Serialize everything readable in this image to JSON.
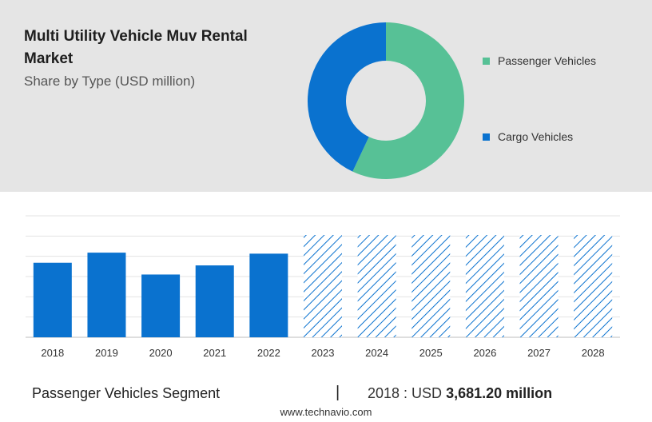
{
  "header": {
    "title": "Multi Utility Vehicle Muv Rental Market",
    "subtitle": "Share by Type (USD million)"
  },
  "chart_data": [
    {
      "type": "pie",
      "donut": true,
      "categories": [
        "Passenger Vehicles",
        "Cargo Vehicles"
      ],
      "values": [
        57,
        43
      ],
      "colors": [
        "#57c196",
        "#0a72cf"
      ],
      "legend_position": "right"
    },
    {
      "type": "bar",
      "categories": [
        "2018",
        "2019",
        "2020",
        "2021",
        "2022",
        "2023",
        "2024",
        "2025",
        "2026",
        "2027",
        "2028"
      ],
      "values": [
        3681.2,
        4180,
        3100,
        3550,
        4130,
        null,
        null,
        null,
        null,
        null,
        null
      ],
      "forecast_categories": [
        "2023",
        "2024",
        "2025",
        "2026",
        "2027",
        "2028"
      ],
      "ylim": [
        0,
        6000
      ],
      "grid": true,
      "bar_color": "#0a72cf",
      "forecast_pattern": "hatched"
    }
  ],
  "footer": {
    "segment": "Passenger Vehicles Segment",
    "divider": "|",
    "value_prefix": "2018 : USD",
    "value_strong": "3,681.20 million",
    "source": "www.technavio.com"
  }
}
